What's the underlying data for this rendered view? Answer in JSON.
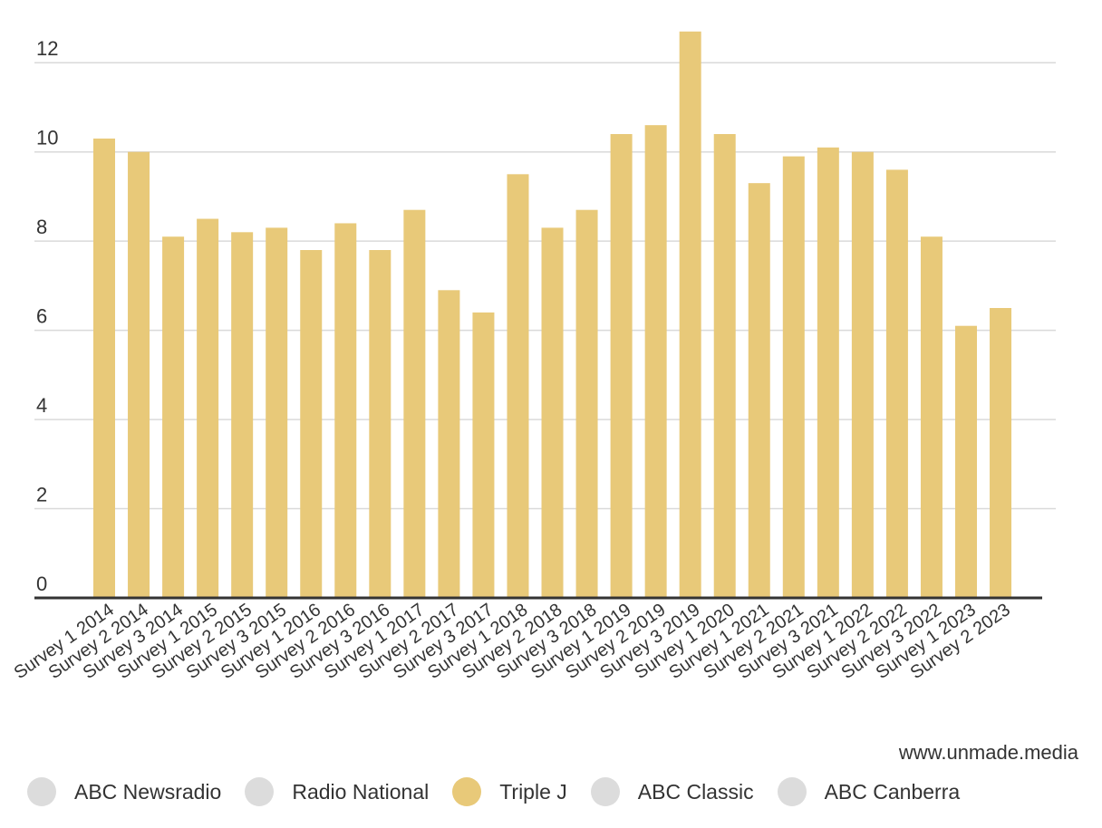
{
  "chart_data": {
    "type": "bar",
    "categories": [
      "Survey 1 2014",
      "Survey 2 2014",
      "Survey 3 2014",
      "Survey 1 2015",
      "Survey 2 2015",
      "Survey 3 2015",
      "Survey 1 2016",
      "Survey 2 2016",
      "Survey 3 2016",
      "Survey 1 2017",
      "Survey 2 2017",
      "Survey 3 2017",
      "Survey 1 2018",
      "Survey 2 2018",
      "Survey 3 2018",
      "Survey 1 2019",
      "Survey 2 2019",
      "Survey 3 2019",
      "Survey 1 2020",
      "Survey 1 2021",
      "Survey 2 2021",
      "Survey 3 2021",
      "Survey 1 2022",
      "Survey 2 2022",
      "Survey 3 2022",
      "Survey 1 2023",
      "Survey 2 2023"
    ],
    "series": [
      {
        "name": "Triple J",
        "color": "#e8c979",
        "values": [
          10.3,
          10.0,
          8.1,
          8.5,
          8.2,
          8.3,
          7.8,
          8.4,
          7.8,
          8.7,
          6.9,
          6.4,
          9.5,
          8.3,
          8.7,
          10.4,
          10.6,
          12.7,
          10.4,
          9.3,
          9.9,
          10.1,
          10.0,
          9.6,
          8.1,
          6.1,
          6.5
        ]
      }
    ],
    "ylim": [
      0,
      13
    ],
    "yticks": [
      0,
      2,
      4,
      6,
      8,
      10,
      12
    ],
    "grid": true,
    "legend_position": "bottom"
  },
  "credit": "www.unmade.media",
  "legend": [
    {
      "label": "ABC Newsradio",
      "color": "#dcdcdc"
    },
    {
      "label": "Radio National",
      "color": "#dcdcdc"
    },
    {
      "label": "Triple J",
      "color": "#e8c979"
    },
    {
      "label": "ABC Classic",
      "color": "#dcdcdc"
    },
    {
      "label": "ABC Canberra",
      "color": "#dcdcdc"
    }
  ]
}
